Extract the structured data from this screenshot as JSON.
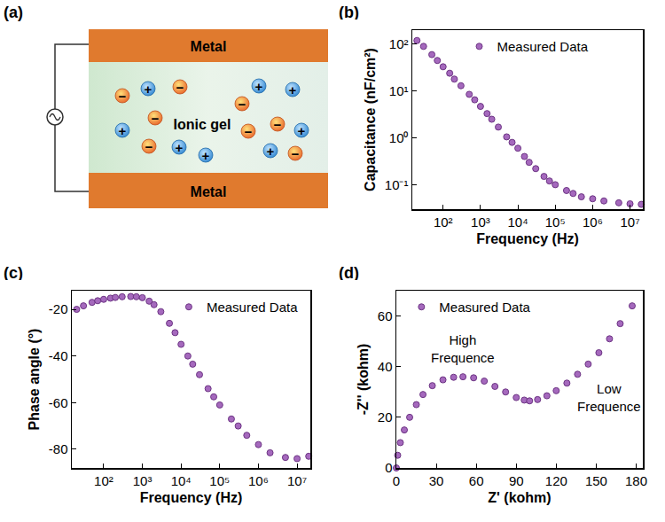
{
  "diagram": {
    "panel": "(a)",
    "top_electrode": "Metal",
    "bottom_electrode": "Metal",
    "electrolyte": "Ionic gel",
    "cation_sign": "+",
    "anion_sign": "−"
  },
  "chart_data": [
    {
      "panel": "(b)",
      "type": "scatter",
      "log": true,
      "x_label": "Frequency (Hz)",
      "y_label": "Capacitance (nF/cm²)",
      "legend": "upper center",
      "xlim": [
        15,
        22000000
      ],
      "xticks": [
        {
          "value": 100,
          "label": "10²"
        },
        {
          "value": 1000,
          "label": "10³"
        },
        {
          "value": 10000,
          "label": "10⁴"
        },
        {
          "value": 100000,
          "label": "10⁵"
        },
        {
          "value": 1000000,
          "label": "10⁶"
        },
        {
          "value": 10000000,
          "label": "10⁷"
        }
      ],
      "ylim": [
        0.03,
        200
      ],
      "yticks": [
        {
          "value": 0.1,
          "label": "10⁻¹"
        },
        {
          "value": 1,
          "label": "10⁰"
        },
        {
          "value": 10,
          "label": "10¹"
        },
        {
          "value": 100,
          "label": "10²"
        }
      ],
      "x": [
        20,
        30,
        50,
        70,
        100,
        150,
        200,
        300,
        500,
        700,
        1000,
        1500,
        2000,
        3000,
        5000,
        7000,
        10000,
        15000,
        20000,
        30000,
        50000,
        70000,
        100000,
        200000,
        300000,
        500000,
        1000000,
        2000000,
        5000000,
        10000000,
        20000000
      ],
      "series": [
        {
          "name": "Measured Data",
          "color": "#a569bd",
          "marker": "circle",
          "values": [
            120,
            90,
            60,
            45,
            33,
            24,
            18,
            13,
            8.5,
            6.5,
            4.7,
            3.3,
            2.5,
            1.7,
            1.05,
            0.8,
            0.6,
            0.4,
            0.3,
            0.22,
            0.15,
            0.12,
            0.1,
            0.075,
            0.065,
            0.055,
            0.05,
            0.045,
            0.041,
            0.039,
            0.038
          ]
        }
      ]
    },
    {
      "panel": "(c)",
      "type": "scatter",
      "log": "x",
      "x_label": "Frequency (Hz)",
      "y_label": "Phase angle (°)",
      "legend": "upper right",
      "xlim": [
        15,
        22000000
      ],
      "xticks": [
        {
          "value": 100,
          "label": "10²"
        },
        {
          "value": 1000,
          "label": "10³"
        },
        {
          "value": 10000,
          "label": "10⁴"
        },
        {
          "value": 100000,
          "label": "10⁵"
        },
        {
          "value": 1000000,
          "label": "10⁶"
        },
        {
          "value": 10000000,
          "label": "10⁷"
        }
      ],
      "ylim": [
        -88,
        -12
      ],
      "yticks": [
        -80,
        -60,
        -40,
        -20
      ],
      "x": [
        20,
        30,
        50,
        70,
        100,
        150,
        200,
        300,
        500,
        700,
        1000,
        1500,
        2000,
        3000,
        5000,
        7000,
        10000,
        15000,
        20000,
        30000,
        50000,
        70000,
        100000,
        200000,
        300000,
        500000,
        1000000,
        2000000,
        5000000,
        10000000,
        20000000
      ],
      "series": [
        {
          "name": "Measured Data",
          "color": "#a569bd",
          "marker": "circle",
          "values": [
            -20,
            -18.5,
            -17,
            -16.3,
            -15.7,
            -15.2,
            -14.9,
            -14.6,
            -14.5,
            -14.6,
            -15,
            -16.5,
            -18,
            -21,
            -26,
            -30,
            -35,
            -40,
            -43.5,
            -48,
            -54,
            -57.5,
            -61,
            -67,
            -70,
            -74,
            -78,
            -81.5,
            -83.5,
            -84,
            -83
          ]
        }
      ]
    },
    {
      "panel": "(d)",
      "type": "scatter",
      "x_label": "Z' (kohm)",
      "y_label": "-Z'' (kohm)",
      "legend": "upper left",
      "xlim": [
        0,
        185
      ],
      "xticks": [
        0,
        30,
        60,
        90,
        120,
        150,
        180
      ],
      "ylim": [
        0,
        70
      ],
      "yticks": [
        0,
        20,
        40,
        60
      ],
      "annotations": [
        {
          "text": "High Frequence",
          "x": 50,
          "y": 47
        },
        {
          "text": "Low Frequence",
          "x": 160,
          "y": 28
        }
      ],
      "x": [
        0,
        1,
        3,
        6,
        10,
        15,
        20,
        27,
        35,
        43,
        50,
        58,
        66,
        74,
        82,
        90,
        96,
        100,
        106,
        113,
        120,
        128,
        136,
        144,
        152,
        160,
        168,
        177
      ],
      "series": [
        {
          "name": "Measured Data",
          "color": "#a569bd",
          "marker": "circle",
          "values": [
            0,
            5,
            10,
            15,
            20,
            25,
            29,
            32.5,
            34.8,
            35.8,
            36,
            35.6,
            34.3,
            32.2,
            30,
            27.8,
            26.8,
            26.5,
            27,
            28.5,
            30.5,
            33.5,
            37,
            41,
            45.5,
            51,
            57,
            64
          ]
        }
      ]
    }
  ]
}
